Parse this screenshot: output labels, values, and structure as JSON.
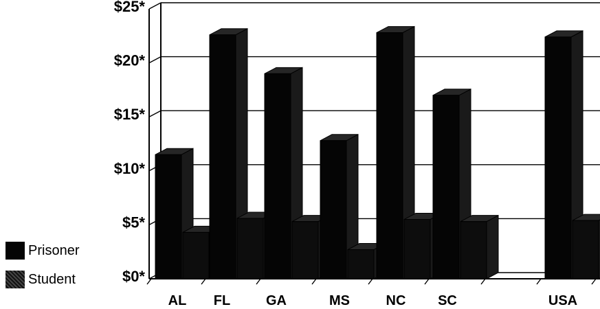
{
  "chart_data": {
    "type": "bar",
    "categories": [
      "AL",
      "FL",
      "GA",
      "MS",
      "NC",
      "SC",
      "",
      "USA"
    ],
    "series": [
      {
        "name": "Prisoner",
        "values": [
          11.5,
          22.6,
          19.0,
          12.8,
          22.8,
          17.0,
          null,
          22.4
        ]
      },
      {
        "name": "Student",
        "values": [
          4.3,
          5.6,
          5.3,
          2.7,
          5.5,
          5.3,
          null,
          5.4
        ]
      }
    ],
    "y_ticks": [
      "$0*",
      "$5*",
      "$10*",
      "$15*",
      "$20*",
      "$25*"
    ],
    "ylim": [
      0,
      25
    ],
    "grid": true,
    "legend": "bottom-left",
    "colors": {
      "prisoner": "#050505",
      "student": "#111111"
    }
  },
  "legend_items": [
    {
      "label": "Prisoner"
    },
    {
      "label": "Student"
    }
  ]
}
